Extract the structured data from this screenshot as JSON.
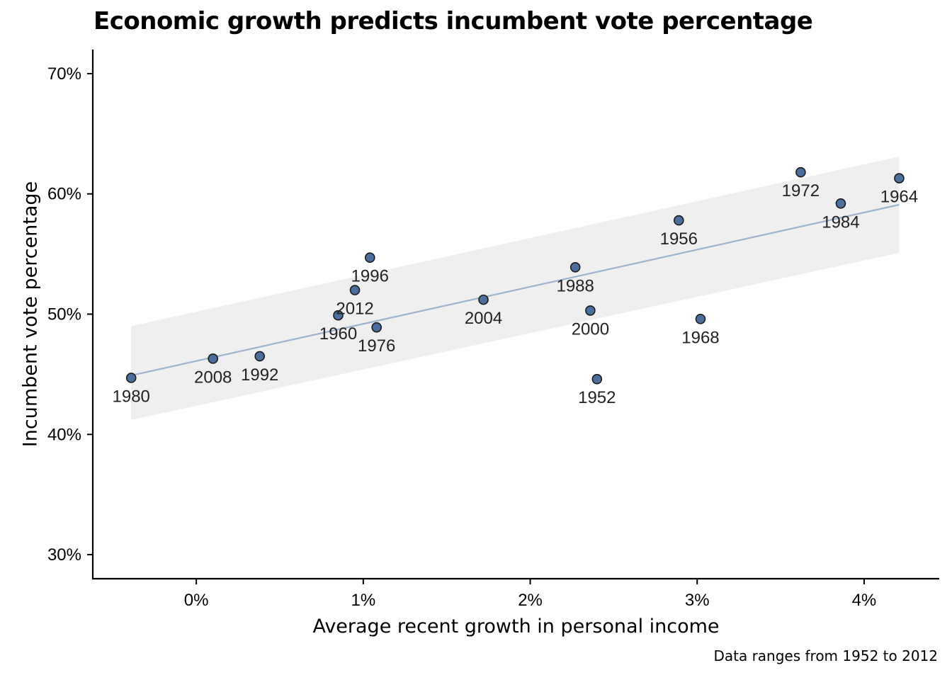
{
  "chart_data": {
    "type": "scatter",
    "title": "Economic growth predicts incumbent vote percentage",
    "xlabel": "Average recent growth in personal income",
    "ylabel": "Incumbent vote percentage",
    "caption": "Data ranges from 1952 to 2012",
    "xlim": [
      -0.62,
      4.45
    ],
    "ylim": [
      28.0,
      72.0
    ],
    "x_ticks": [
      {
        "value": 0,
        "label": "0%"
      },
      {
        "value": 1,
        "label": "1%"
      },
      {
        "value": 2,
        "label": "2%"
      },
      {
        "value": 3,
        "label": "3%"
      },
      {
        "value": 4,
        "label": "4%"
      }
    ],
    "y_ticks": [
      {
        "value": 30,
        "label": "30%"
      },
      {
        "value": 40,
        "label": "40%"
      },
      {
        "value": 50,
        "label": "50%"
      },
      {
        "value": 60,
        "label": "60%"
      },
      {
        "value": 70,
        "label": "70%"
      }
    ],
    "points": [
      {
        "label": "1952",
        "x": 2.4,
        "y": 44.6
      },
      {
        "label": "1956",
        "x": 2.89,
        "y": 57.8
      },
      {
        "label": "1960",
        "x": 0.85,
        "y": 49.9
      },
      {
        "label": "1964",
        "x": 4.21,
        "y": 61.3
      },
      {
        "label": "1968",
        "x": 3.02,
        "y": 49.6
      },
      {
        "label": "1972",
        "x": 3.62,
        "y": 61.8
      },
      {
        "label": "1976",
        "x": 1.08,
        "y": 48.9
      },
      {
        "label": "1980",
        "x": -0.39,
        "y": 44.7
      },
      {
        "label": "1984",
        "x": 3.86,
        "y": 59.2
      },
      {
        "label": "1988",
        "x": 2.27,
        "y": 53.9
      },
      {
        "label": "1992",
        "x": 0.38,
        "y": 46.5
      },
      {
        "label": "1996",
        "x": 1.04,
        "y": 54.7
      },
      {
        "label": "2000",
        "x": 2.36,
        "y": 50.3
      },
      {
        "label": "2004",
        "x": 1.72,
        "y": 51.2
      },
      {
        "label": "2008",
        "x": 0.1,
        "y": 46.3
      },
      {
        "label": "2012",
        "x": 0.95,
        "y": 52.0
      }
    ],
    "regression": {
      "x": [
        -0.39,
        4.21
      ],
      "y": [
        44.9,
        59.1
      ]
    },
    "confidence_band": {
      "x": [
        -0.39,
        4.21
      ],
      "upper": [
        49.0,
        63.1
      ],
      "lower": [
        41.2,
        55.1
      ]
    },
    "grid": false,
    "legend": "none",
    "colors": {
      "point_fill": "#4a6f9c",
      "point_stroke": "#1a1a1a",
      "line": "#9db3cc",
      "band": "#efefef",
      "axis": "#000000"
    }
  }
}
